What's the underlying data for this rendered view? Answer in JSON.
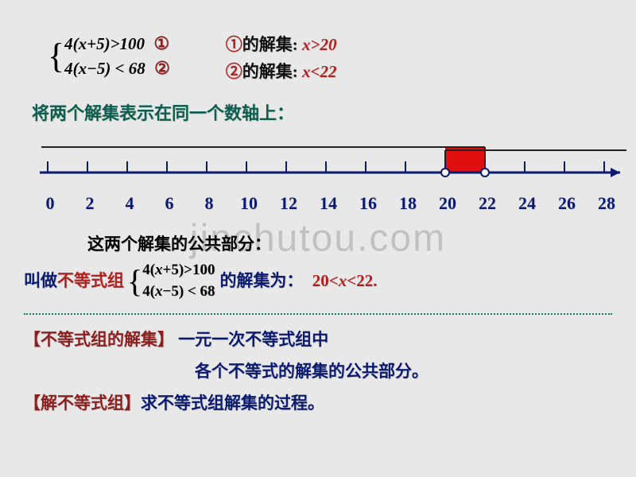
{
  "system": {
    "ineq1": "4(x+5)>100",
    "ineq2": "4(x−5) < 68",
    "mark1": "①",
    "mark2": "②"
  },
  "solutions": {
    "label1_prefix": "①",
    "label1_text": "的解集:",
    "sol1": "x>20",
    "label2_prefix": "②",
    "label2_text": "的解集:",
    "sol2": "x<22"
  },
  "line_represent": "将两个解集表示在同一个数轴上：",
  "axis": {
    "ticks": [
      0,
      2,
      4,
      6,
      8,
      10,
      12,
      14,
      16,
      18,
      20,
      22,
      24,
      26,
      28
    ],
    "xmin": 0,
    "xmax": 28,
    "shade_start": 20,
    "shade_end": 22,
    "open_left": true,
    "open_right": true,
    "ray1_start": 20,
    "ray1_dir": "right",
    "ray2_start": 22,
    "ray2_dir": "left",
    "shade_color": "#e01010",
    "axis_color": "#0a1a6e",
    "ray_color": "#222",
    "open_circle_fill": "#f8f8f8"
  },
  "common_part": {
    "line1": "这两个解集的公共部分：",
    "prefix": "叫做",
    "term": "不等式组",
    "suffix": "的解集为：",
    "result": "20<x<22."
  },
  "defs": {
    "d1_label": "【不等式组的解集】",
    "d1_line1": "一元一次不等式组中",
    "d1_line2": "各个不等式的解集的公共部分。",
    "d2_label": "【解不等式组】",
    "d2_text": "求不等式组解集的过程。"
  },
  "watermark": "jinchutou.com"
}
